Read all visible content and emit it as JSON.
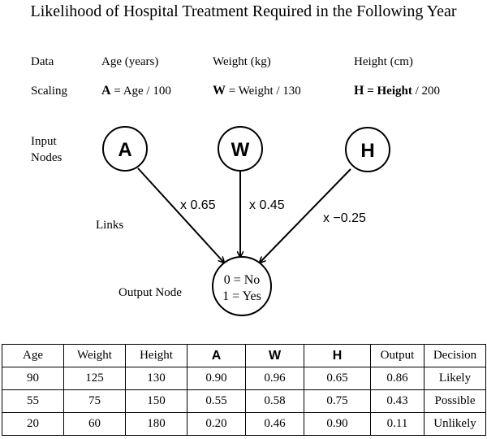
{
  "title": "Likelihood of Hospital Treatment Required in the Following Year",
  "data_row": {
    "label": "Data",
    "age": "Age (years)",
    "weight": "Weight (kg)",
    "height": "Height (cm)"
  },
  "scaling_row": {
    "label": "Scaling",
    "a_letter": "A",
    "a_text": " = Age / 100",
    "w_letter": "W",
    "w_text": " = Weight / 130",
    "h_letter": "H",
    "h_text_bold": " = Height",
    "h_text": " / 200"
  },
  "labels": {
    "input_line1": "Input",
    "input_line2": "Nodes",
    "links": "Links",
    "output_node": "Output Node"
  },
  "nodes": {
    "a": "A",
    "w": "W",
    "h": "H",
    "output_line1": "0 = No",
    "output_line2": "1 = Yes"
  },
  "weights": {
    "a": "x 0.65",
    "w": "x 0.45",
    "h": "x −0.25"
  },
  "table": {
    "headers": [
      "Age",
      "Weight",
      "Height",
      "A",
      "W",
      "H",
      "Output",
      "Decision"
    ],
    "rows": [
      [
        "90",
        "125",
        "130",
        "0.90",
        "0.96",
        "0.65",
        "0.86",
        "Likely"
      ],
      [
        "55",
        "75",
        "150",
        "0.55",
        "0.58",
        "0.75",
        "0.43",
        "Possible"
      ],
      [
        "20",
        "60",
        "180",
        "0.20",
        "0.46",
        "0.90",
        "0.11",
        "Unlikely"
      ]
    ]
  }
}
